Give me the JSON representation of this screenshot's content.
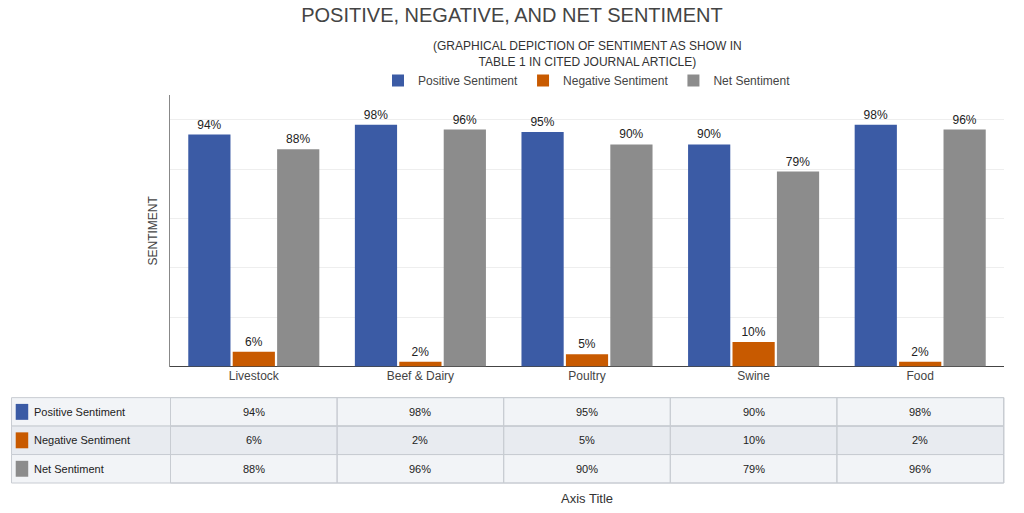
{
  "chart_data": {
    "type": "bar",
    "title": "POSITIVE, NEGATIVE, AND NET SENTIMENT",
    "subtitle": "(GRAPHICAL DEPICTION OF SENTIMENT AS SHOW IN\nTABLE 1 IN CITED JOURNAL ARTICLE)",
    "xlabel": "Axis Title",
    "ylabel": "SENTIMENT",
    "categories": [
      "Livestock",
      "Beef & Dairy",
      "Poultry",
      "Swine",
      "Food"
    ],
    "series": [
      {
        "name": "Positive Sentiment",
        "color": "#3B5BA5",
        "values": [
          94,
          98,
          95,
          90,
          98
        ],
        "value_labels": [
          "94%",
          "98%",
          "95%",
          "90%",
          "98%"
        ]
      },
      {
        "name": "Negative Sentiment",
        "color": "#C85A00",
        "values": [
          6,
          2,
          5,
          10,
          2
        ],
        "value_labels": [
          "6%",
          "2%",
          "5%",
          "10%",
          "2%"
        ]
      },
      {
        "name": "Net Sentiment",
        "color": "#8C8C8C",
        "values": [
          88,
          96,
          90,
          79,
          96
        ],
        "value_labels": [
          "88%",
          "96%",
          "90%",
          "79%",
          "96%"
        ]
      }
    ],
    "ylim": [
      0,
      110
    ],
    "yticks": [
      0,
      20,
      40,
      60,
      80,
      100
    ],
    "grid": true,
    "data_labels": true,
    "tick_labels": "x",
    "legend": "top"
  }
}
